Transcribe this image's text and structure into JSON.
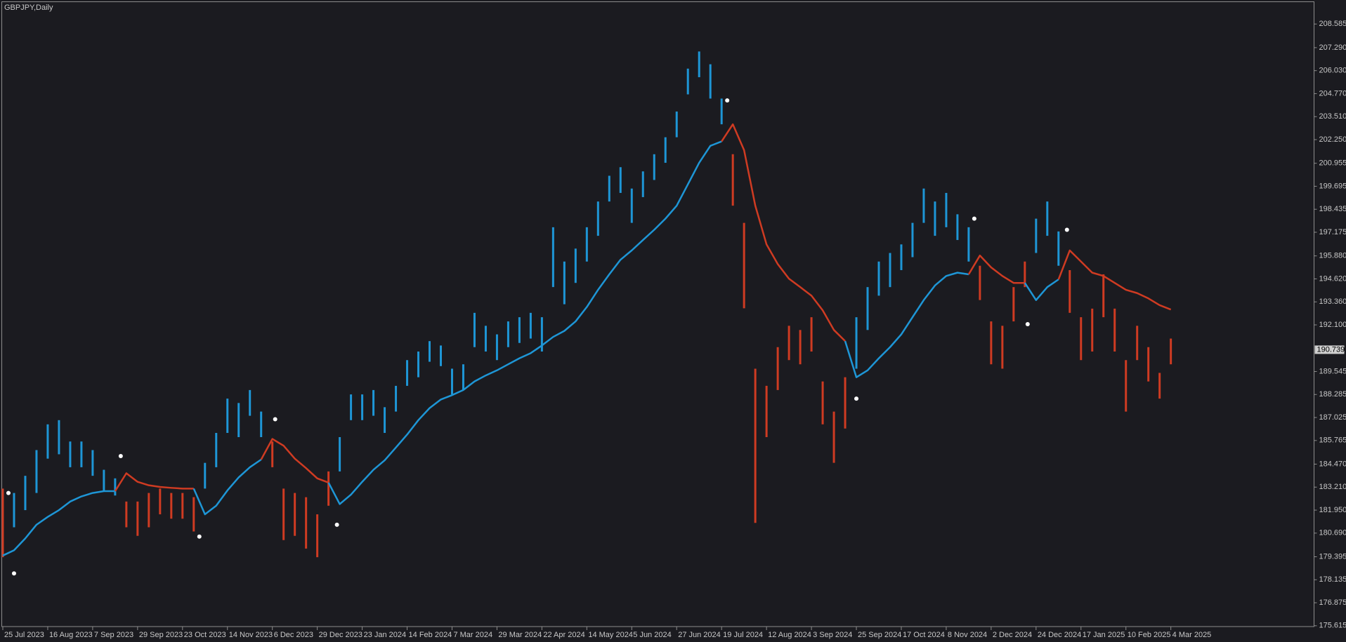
{
  "chart_data": {
    "type": "candlestick",
    "title": "GBPJPY,Daily",
    "x": [
      0,
      4,
      8,
      12,
      16,
      20,
      24,
      28,
      32,
      36,
      40,
      44,
      48,
      52,
      56,
      60,
      64,
      68,
      72,
      76,
      80,
      84,
      88,
      92,
      96,
      100,
      104,
      108,
      112,
      116,
      120,
      124,
      128,
      132,
      136,
      140,
      144,
      148,
      152,
      156,
      160,
      164,
      168,
      172,
      176,
      180,
      184,
      188,
      192,
      196,
      200,
      204,
      208,
      212,
      216,
      220,
      224,
      228,
      232,
      236,
      240,
      244,
      248,
      252,
      256,
      260,
      264,
      268,
      272,
      276,
      280,
      284,
      288,
      292,
      296,
      300,
      304,
      308,
      312,
      316,
      320,
      324,
      328,
      332,
      336,
      340,
      344,
      348,
      352,
      356,
      360,
      364,
      368,
      372,
      376,
      380,
      384,
      388,
      392,
      396,
      400,
      404,
      408,
      412,
      416
    ],
    "high": [
      183.13,
      182.89,
      183.83,
      185.24,
      186.65,
      186.88,
      185.71,
      185.71,
      185.24,
      184.16,
      183.69,
      182.42,
      182.42,
      182.89,
      183.13,
      182.89,
      182.89,
      182.66,
      184.54,
      186.18,
      188.06,
      187.82,
      188.53,
      187.35,
      185.71,
      183.13,
      182.89,
      182.66,
      181.72,
      184.07,
      185.95,
      188.29,
      188.29,
      188.53,
      187.59,
      188.76,
      190.17,
      190.64,
      191.21,
      190.97,
      189.7,
      189.94,
      192.76,
      192.05,
      191.58,
      192.29,
      192.52,
      192.76,
      192.52,
      197.45,
      195.57,
      196.28,
      197.45,
      198.86,
      200.27,
      200.74,
      199.57,
      200.51,
      201.45,
      202.38,
      203.79,
      206.14,
      207.08,
      206.38,
      204.5,
      201.45,
      197.69,
      189.7,
      188.76,
      190.88,
      192.05,
      191.82,
      192.52,
      189.0,
      187.35,
      189.23,
      192.52,
      194.17,
      195.57,
      196.04,
      196.51,
      197.69,
      199.57,
      198.86,
      199.33,
      198.16,
      197.45,
      195.34,
      192.29,
      192.05,
      194.17,
      195.57,
      197.92,
      198.86,
      197.22,
      195.1,
      192.52,
      192.99,
      194.87,
      192.99,
      190.17,
      192.05,
      190.88,
      189.47,
      191.35
    ],
    "low": [
      179.37,
      181.01,
      181.95,
      182.89,
      184.77,
      185.01,
      184.3,
      184.3,
      183.83,
      183.03,
      182.75,
      181.01,
      180.54,
      181.01,
      181.72,
      181.48,
      181.48,
      180.78,
      183.13,
      184.3,
      186.18,
      185.95,
      187.12,
      185.95,
      184.3,
      180.31,
      180.54,
      179.84,
      179.37,
      182.19,
      184.07,
      186.88,
      186.88,
      187.12,
      186.18,
      187.35,
      188.76,
      189.23,
      190.08,
      189.84,
      188.29,
      188.53,
      190.88,
      190.64,
      190.17,
      190.88,
      191.11,
      191.35,
      190.64,
      194.17,
      193.23,
      194.4,
      195.57,
      196.98,
      198.86,
      199.33,
      197.69,
      199.1,
      200.04,
      200.98,
      202.38,
      204.73,
      205.67,
      204.5,
      203.09,
      198.63,
      193.01,
      181.25,
      185.95,
      188.53,
      190.17,
      189.94,
      190.64,
      186.65,
      184.54,
      186.42,
      189.7,
      191.82,
      193.7,
      194.17,
      195.1,
      195.81,
      197.69,
      196.98,
      197.45,
      196.75,
      195.57,
      193.46,
      189.94,
      189.7,
      192.29,
      194.17,
      196.04,
      196.98,
      195.34,
      192.76,
      190.17,
      190.64,
      192.52,
      190.64,
      187.35,
      190.17,
      189.0,
      188.06,
      189.94
    ],
    "colors": [
      "#cf3b22",
      "#1e96d6",
      "#1e96d6",
      "#1e96d6",
      "#1e96d6",
      "#1e96d6",
      "#1e96d6",
      "#1e96d6",
      "#1e96d6",
      "#1e96d6",
      "#1e96d6",
      "#cf3b22",
      "#cf3b22",
      "#cf3b22",
      "#cf3b22",
      "#cf3b22",
      "#cf3b22",
      "#cf3b22",
      "#1e96d6",
      "#1e96d6",
      "#1e96d6",
      "#1e96d6",
      "#1e96d6",
      "#1e96d6",
      "#cf3b22",
      "#cf3b22",
      "#cf3b22",
      "#cf3b22",
      "#cf3b22",
      "#cf3b22",
      "#1e96d6",
      "#1e96d6",
      "#1e96d6",
      "#1e96d6",
      "#1e96d6",
      "#1e96d6",
      "#1e96d6",
      "#1e96d6",
      "#1e96d6",
      "#1e96d6",
      "#1e96d6",
      "#1e96d6",
      "#1e96d6",
      "#1e96d6",
      "#1e96d6",
      "#1e96d6",
      "#1e96d6",
      "#1e96d6",
      "#1e96d6",
      "#1e96d6",
      "#1e96d6",
      "#1e96d6",
      "#1e96d6",
      "#1e96d6",
      "#1e96d6",
      "#1e96d6",
      "#1e96d6",
      "#1e96d6",
      "#1e96d6",
      "#1e96d6",
      "#1e96d6",
      "#1e96d6",
      "#1e96d6",
      "#1e96d6",
      "#1e96d6",
      "#cf3b22",
      "#cf3b22",
      "#cf3b22",
      "#cf3b22",
      "#cf3b22",
      "#cf3b22",
      "#cf3b22",
      "#cf3b22",
      "#cf3b22",
      "#cf3b22",
      "#cf3b22",
      "#1e96d6",
      "#1e96d6",
      "#1e96d6",
      "#1e96d6",
      "#1e96d6",
      "#1e96d6",
      "#1e96d6",
      "#1e96d6",
      "#1e96d6",
      "#1e96d6",
      "#1e96d6",
      "#cf3b22",
      "#cf3b22",
      "#cf3b22",
      "#cf3b22",
      "#cf3b22",
      "#1e96d6",
      "#1e96d6",
      "#1e96d6",
      "#cf3b22",
      "#cf3b22",
      "#cf3b22",
      "#cf3b22",
      "#cf3b22",
      "#cf3b22",
      "#cf3b22",
      "#cf3b22",
      "#cf3b22",
      "#cf3b22"
    ],
    "ma": {
      "values": [
        179.46,
        179.75,
        180.4,
        181.15,
        181.58,
        181.95,
        182.42,
        182.7,
        182.89,
        182.99,
        182.99,
        183.97,
        183.5,
        183.31,
        183.22,
        183.17,
        183.13,
        183.13,
        181.72,
        182.19,
        183.03,
        183.74,
        184.3,
        184.72,
        185.85,
        185.48,
        184.77,
        184.25,
        183.69,
        183.46,
        182.28,
        182.8,
        183.5,
        184.16,
        184.68,
        185.38,
        186.09,
        186.88,
        187.54,
        188.01,
        188.25,
        188.53,
        189.0,
        189.33,
        189.61,
        189.94,
        190.27,
        190.55,
        190.97,
        191.44,
        191.77,
        192.29,
        193.08,
        194.02,
        194.87,
        195.67,
        196.18,
        196.75,
        197.31,
        197.92,
        198.63,
        199.8,
        200.98,
        201.91,
        202.15,
        203.09,
        201.68,
        198.63,
        196.51,
        195.43,
        194.63,
        194.17,
        193.7,
        192.9,
        191.82,
        191.21,
        189.23,
        189.61,
        190.27,
        190.88,
        191.58,
        192.52,
        193.46,
        194.26,
        194.78,
        194.96,
        194.87,
        195.9,
        195.25,
        194.78,
        194.4,
        194.4,
        193.46,
        194.17,
        194.59,
        196.18,
        195.57,
        194.96,
        194.78,
        194.4,
        194.02,
        193.84,
        193.55,
        193.18,
        192.94
      ]
    },
    "signals": {
      "x": [
        2,
        4,
        42,
        70,
        97,
        119,
        258,
        304,
        346,
        365,
        379
      ],
      "values": [
        182.89,
        178.48,
        184.91,
        180.5,
        186.93,
        181.15,
        204.4,
        188.06,
        197.92,
        192.14,
        197.31
      ],
      "color": "#ffffff"
    },
    "last_price": 190.739,
    "xlim": [
      -1,
      467
    ],
    "ylim": [
      175.57,
      209.81
    ],
    "xticks": [
      {
        "value": 0,
        "label": "25 Jul 2023"
      },
      {
        "value": 16,
        "label": "16 Aug 2023"
      },
      {
        "value": 32,
        "label": "7 Sep 2023"
      },
      {
        "value": 48,
        "label": "29 Sep 2023"
      },
      {
        "value": 64,
        "label": "23 Oct 2023"
      },
      {
        "value": 80,
        "label": "14 Nov 2023"
      },
      {
        "value": 96,
        "label": "6 Dec 2023"
      },
      {
        "value": 112,
        "label": "29 Dec 2023"
      },
      {
        "value": 128,
        "label": "23 Jan 2024"
      },
      {
        "value": 144,
        "label": "14 Feb 2024"
      },
      {
        "value": 160,
        "label": "7 Mar 2024"
      },
      {
        "value": 176,
        "label": "29 Mar 2024"
      },
      {
        "value": 192,
        "label": "22 Apr 2024"
      },
      {
        "value": 208,
        "label": "14 May 2024"
      },
      {
        "value": 224,
        "label": "5 Jun 2024"
      },
      {
        "value": 240,
        "label": "27 Jun 2024"
      },
      {
        "value": 256,
        "label": "19 Jul 2024"
      },
      {
        "value": 272,
        "label": "12 Aug 2024"
      },
      {
        "value": 288,
        "label": "3 Sep 2024"
      },
      {
        "value": 304,
        "label": "25 Sep 2024"
      },
      {
        "value": 320,
        "label": "17 Oct 2024"
      },
      {
        "value": 336,
        "label": "8 Nov 2024"
      },
      {
        "value": 352,
        "label": "2 Dec 2024"
      },
      {
        "value": 368,
        "label": "24 Dec 2024"
      },
      {
        "value": 384,
        "label": "17 Jan 2025"
      },
      {
        "value": 400,
        "label": "10 Feb 2025"
      },
      {
        "value": 416,
        "label": "4 Mar 2025"
      }
    ],
    "yticks": [
      208.585,
      {
        "value": 207.29,
        "label": "207.290"
      },
      {
        "value": 206.03,
        "label": "206.030"
      },
      {
        "value": 204.77,
        "label": "204.770"
      },
      {
        "value": 203.51,
        "label": "203.510"
      },
      {
        "value": 202.25,
        "label": "202.250"
      },
      200.955,
      199.695,
      198.435,
      197.175,
      {
        "value": 195.88,
        "label": "195.880"
      },
      {
        "value": 194.62,
        "label": "194.620"
      },
      {
        "value": 193.36,
        "label": "193.360"
      },
      {
        "value": 192.1,
        "label": "192.100"
      },
      189.545,
      188.285,
      187.025,
      185.765,
      {
        "value": 184.47,
        "label": "184.470"
      },
      {
        "value": 183.21,
        "label": "183.210"
      },
      {
        "value": 181.95,
        "label": "181.950"
      },
      {
        "value": 180.69,
        "label": "180.690"
      },
      179.395,
      178.135,
      176.875,
      175.615
    ],
    "grid": false
  }
}
